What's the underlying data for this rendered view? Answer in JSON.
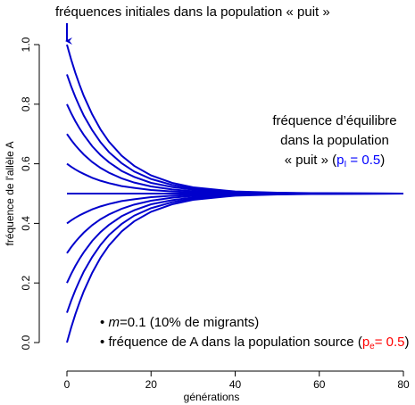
{
  "chart_data": {
    "type": "line",
    "title": "fréquences initiales dans la population « puit »",
    "xlabel": "générations",
    "ylabel": "fréquence de l'allèle A",
    "x": [
      0,
      1,
      2,
      3,
      4,
      6,
      8,
      10,
      13,
      16,
      20,
      25,
      30,
      40,
      50,
      60,
      80
    ],
    "series": [
      {
        "color": "#0000cc",
        "values": [
          1,
          0.95,
          0.905,
          0.865,
          0.828,
          0.766,
          0.715,
          0.674,
          0.627,
          0.593,
          0.561,
          0.536,
          0.521,
          0.507,
          0.503,
          0.501,
          0.5
        ]
      },
      {
        "color": "#0000cc",
        "values": [
          0.9,
          0.86,
          0.824,
          0.792,
          0.762,
          0.713,
          0.672,
          0.639,
          0.602,
          0.574,
          0.549,
          0.529,
          0.517,
          0.506,
          0.502,
          0.501,
          0.5
        ]
      },
      {
        "color": "#0000cc",
        "values": [
          0.8,
          0.77,
          0.743,
          0.719,
          0.697,
          0.659,
          0.629,
          0.605,
          0.576,
          0.556,
          0.536,
          0.522,
          0.513,
          0.504,
          0.502,
          0.501,
          0.5
        ]
      },
      {
        "color": "#0000cc",
        "values": [
          0.7,
          0.68,
          0.662,
          0.646,
          0.631,
          0.606,
          0.586,
          0.57,
          0.551,
          0.537,
          0.524,
          0.514,
          0.508,
          0.503,
          0.501,
          0.5,
          0.5
        ]
      },
      {
        "color": "#0000cc",
        "values": [
          0.6,
          0.59,
          0.581,
          0.573,
          0.566,
          0.553,
          0.543,
          0.535,
          0.525,
          0.519,
          0.512,
          0.507,
          0.504,
          0.501,
          0.501,
          0.5,
          0.5
        ]
      },
      {
        "color": "#0000cc",
        "values": [
          0.5,
          0.5,
          0.5,
          0.5,
          0.5,
          0.5,
          0.5,
          0.5,
          0.5,
          0.5,
          0.5,
          0.5,
          0.5,
          0.5,
          0.5,
          0.5,
          0.5
        ]
      },
      {
        "color": "#0000cc",
        "values": [
          0.4,
          0.41,
          0.419,
          0.427,
          0.434,
          0.447,
          0.457,
          0.465,
          0.475,
          0.481,
          0.488,
          0.493,
          0.496,
          0.499,
          0.499,
          0.5,
          0.5
        ]
      },
      {
        "color": "#0000cc",
        "values": [
          0.3,
          0.32,
          0.338,
          0.354,
          0.369,
          0.394,
          0.414,
          0.43,
          0.449,
          0.463,
          0.476,
          0.486,
          0.492,
          0.497,
          0.499,
          0.5,
          0.5
        ]
      },
      {
        "color": "#0000cc",
        "values": [
          0.2,
          0.23,
          0.257,
          0.281,
          0.303,
          0.341,
          0.371,
          0.395,
          0.424,
          0.444,
          0.464,
          0.478,
          0.487,
          0.496,
          0.498,
          0.499,
          0.5
        ]
      },
      {
        "color": "#0000cc",
        "values": [
          0.1,
          0.14,
          0.176,
          0.208,
          0.238,
          0.287,
          0.328,
          0.361,
          0.398,
          0.426,
          0.451,
          0.471,
          0.483,
          0.494,
          0.498,
          0.499,
          0.5
        ]
      },
      {
        "color": "#0000cc",
        "values": [
          0,
          0.05,
          0.095,
          0.135,
          0.172,
          0.234,
          0.285,
          0.326,
          0.373,
          0.407,
          0.439,
          0.464,
          0.479,
          0.493,
          0.497,
          0.499,
          0.5
        ]
      }
    ],
    "xlim": [
      0,
      80
    ],
    "xticks": [
      0,
      20,
      40,
      60,
      80
    ],
    "ylim": [
      0,
      1
    ],
    "yticks": [
      {
        "value": 0,
        "label": "0.0"
      },
      0.2,
      0.4,
      0.6,
      0.8,
      {
        "value": 1,
        "label": "1.0"
      }
    ],
    "grid": false,
    "annotations": {
      "equilibrium": {
        "line1": "fréquence d’équilibre",
        "line2": "dans la population",
        "line3": "« puit » (",
        "symbol": "p",
        "subscript": "I",
        "value_text": " = 0.5",
        "close": ")"
      },
      "bullet1": {
        "bullet": "•",
        "var": "m",
        "rest": "=0.1 (10% de migrants)"
      },
      "bullet2": {
        "bullet": "•",
        "text": "fréquence de A dans la population source (",
        "symbol": "p",
        "subscript": "e",
        "value_text": "= 0.5",
        "close": ")"
      }
    }
  }
}
